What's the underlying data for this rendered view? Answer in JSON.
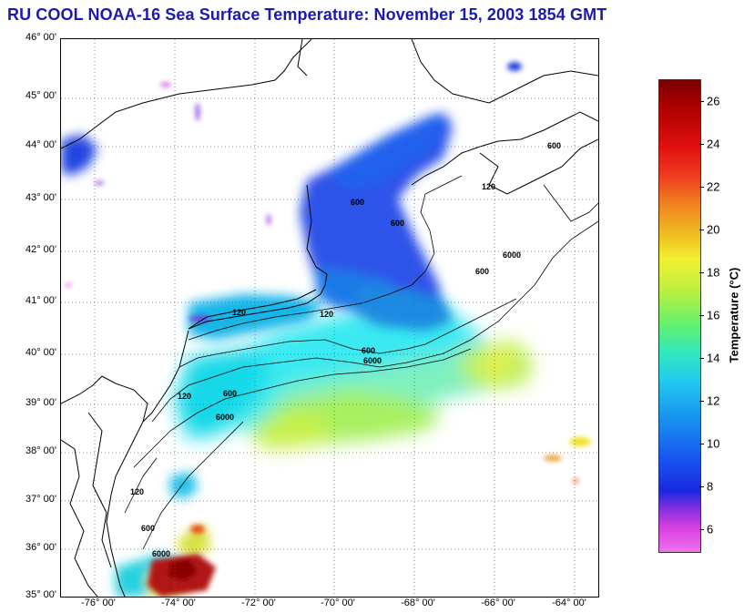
{
  "title": "RU COOL  NOAA-16  Sea Surface Temperature:  November 15, 2003 1854 GMT",
  "latitude_labels": [
    "46° 00'",
    "45° 00'",
    "44° 00'",
    "43° 00'",
    "42° 00'",
    "41° 00'",
    "40° 00'",
    "39° 00'",
    "38° 00'",
    "37° 00'",
    "36° 00'",
    "35° 00'"
  ],
  "longitude_labels": [
    "-76° 00'",
    "-74° 00'",
    "-72° 00'",
    "-70° 00'",
    "-68° 00'",
    "-66° 00'",
    "-64° 00'"
  ],
  "contour_labels": [
    "120",
    "600",
    "6000"
  ],
  "colorbar": {
    "label": "Temperature (°C)",
    "ticks": [
      "26",
      "24",
      "22",
      "20",
      "18",
      "16",
      "14",
      "12",
      "10",
      "8",
      "6"
    ],
    "min": 5,
    "max": 27
  },
  "colors": {
    "title": "#1a1ab0"
  }
}
